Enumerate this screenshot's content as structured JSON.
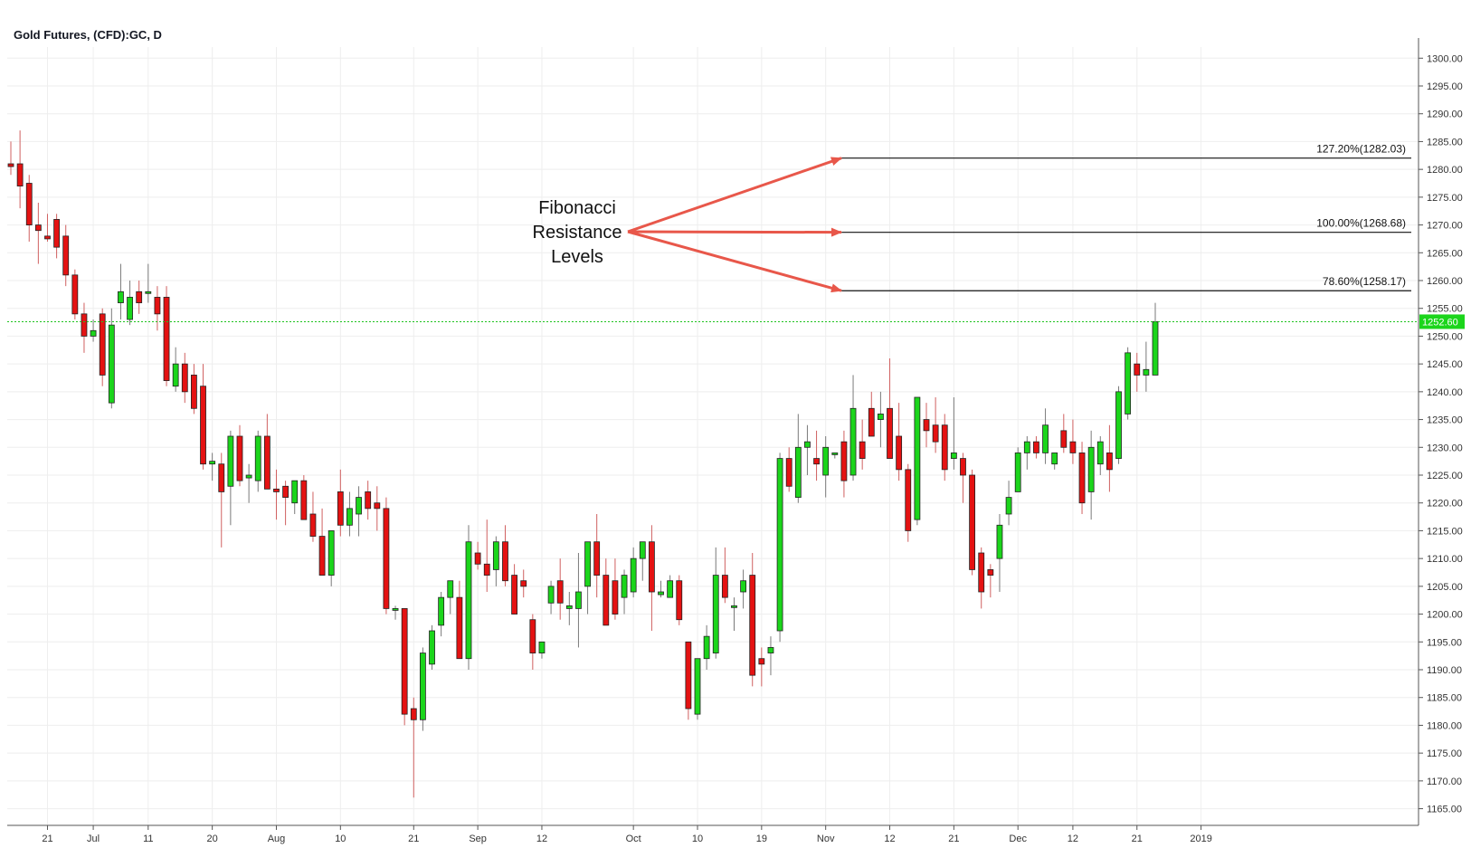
{
  "chart_data": {
    "type": "candlestick",
    "title": "Gold Futures, (CFD):GC, D",
    "ylim": [
      1162,
      1302
    ],
    "yticks": [
      1165,
      1170,
      1175,
      1180,
      1185,
      1190,
      1195,
      1200,
      1205,
      1210,
      1215,
      1220,
      1225,
      1230,
      1235,
      1240,
      1245,
      1250,
      1255,
      1260,
      1265,
      1270,
      1275,
      1280,
      1285,
      1290,
      1295,
      1300
    ],
    "xticks": [
      "21",
      "Jul",
      "11",
      "20",
      "Aug",
      "10",
      "21",
      "Sep",
      "12",
      "Oct",
      "10",
      "19",
      "Nov",
      "12",
      "21",
      "Dec",
      "12",
      "21",
      "2019"
    ],
    "xtick_bars": [
      4,
      9,
      15,
      22,
      29,
      36,
      44,
      51,
      58,
      68,
      75,
      82,
      89,
      96,
      103,
      110,
      116,
      123,
      130
    ],
    "colors": {
      "up": "#1bd51b",
      "down": "#e41212",
      "last_price_line": "#1ec31e",
      "grid": "#eeeeee",
      "arrow": "#e8574a"
    },
    "last_price": 1252.6,
    "last_price_label": "1252.60",
    "candles": [
      {
        "o": 1281,
        "h": 1285,
        "l": 1279,
        "c": 1280.5
      },
      {
        "o": 1281,
        "h": 1287,
        "l": 1273,
        "c": 1277
      },
      {
        "o": 1277.5,
        "h": 1279,
        "l": 1267,
        "c": 1270
      },
      {
        "o": 1270,
        "h": 1274,
        "l": 1263,
        "c": 1269
      },
      {
        "o": 1268,
        "h": 1272,
        "l": 1267,
        "c": 1267.5
      },
      {
        "o": 1271,
        "h": 1272,
        "l": 1264,
        "c": 1266
      },
      {
        "o": 1268,
        "h": 1270,
        "l": 1259,
        "c": 1261
      },
      {
        "o": 1261,
        "h": 1262,
        "l": 1253,
        "c": 1254
      },
      {
        "o": 1254,
        "h": 1256,
        "l": 1247,
        "c": 1250
      },
      {
        "o": 1250,
        "h": 1253,
        "l": 1249,
        "c": 1251
      },
      {
        "o": 1254,
        "h": 1255,
        "l": 1241,
        "c": 1243
      },
      {
        "o": 1238,
        "h": 1255,
        "l": 1237,
        "c": 1252
      },
      {
        "o": 1256,
        "h": 1263,
        "l": 1253,
        "c": 1258
      },
      {
        "o": 1253,
        "h": 1260,
        "l": 1252,
        "c": 1257
      },
      {
        "o": 1258,
        "h": 1260,
        "l": 1254,
        "c": 1256
      },
      {
        "o": 1258,
        "h": 1263,
        "l": 1256,
        "c": 1258
      },
      {
        "o": 1257,
        "h": 1259,
        "l": 1251,
        "c": 1254
      },
      {
        "o": 1257,
        "h": 1259,
        "l": 1241,
        "c": 1242
      },
      {
        "o": 1241,
        "h": 1248,
        "l": 1240,
        "c": 1245
      },
      {
        "o": 1245,
        "h": 1247,
        "l": 1238,
        "c": 1240
      },
      {
        "o": 1243,
        "h": 1245,
        "l": 1236,
        "c": 1237
      },
      {
        "o": 1241,
        "h": 1245,
        "l": 1226,
        "c": 1227
      },
      {
        "o": 1227,
        "h": 1229,
        "l": 1224,
        "c": 1227.5
      },
      {
        "o": 1227,
        "h": 1229,
        "l": 1212,
        "c": 1222
      },
      {
        "o": 1223,
        "h": 1233,
        "l": 1216,
        "c": 1232
      },
      {
        "o": 1232,
        "h": 1234,
        "l": 1223,
        "c": 1224
      },
      {
        "o": 1224.5,
        "h": 1227,
        "l": 1220,
        "c": 1225
      },
      {
        "o": 1224,
        "h": 1233,
        "l": 1222,
        "c": 1232
      },
      {
        "o": 1232,
        "h": 1236,
        "l": 1223,
        "c": 1222.5
      },
      {
        "o": 1222.5,
        "h": 1226,
        "l": 1217,
        "c": 1222
      },
      {
        "o": 1223,
        "h": 1224,
        "l": 1216,
        "c": 1221
      },
      {
        "o": 1220,
        "h": 1224,
        "l": 1218,
        "c": 1224
      },
      {
        "o": 1224,
        "h": 1225,
        "l": 1217,
        "c": 1217
      },
      {
        "o": 1218,
        "h": 1222,
        "l": 1213,
        "c": 1214
      },
      {
        "o": 1214,
        "h": 1219,
        "l": 1207,
        "c": 1207
      },
      {
        "o": 1207,
        "h": 1215,
        "l": 1205,
        "c": 1215
      },
      {
        "o": 1222,
        "h": 1226,
        "l": 1214,
        "c": 1216
      },
      {
        "o": 1216,
        "h": 1222,
        "l": 1214,
        "c": 1219
      },
      {
        "o": 1218,
        "h": 1223,
        "l": 1214,
        "c": 1221
      },
      {
        "o": 1222,
        "h": 1224,
        "l": 1217,
        "c": 1219
      },
      {
        "o": 1220,
        "h": 1223,
        "l": 1215,
        "c": 1219
      },
      {
        "o": 1219,
        "h": 1221,
        "l": 1200,
        "c": 1201
      },
      {
        "o": 1201,
        "h": 1201.5,
        "l": 1199,
        "c": 1201
      },
      {
        "o": 1201,
        "h": 1201,
        "l": 1180,
        "c": 1182
      },
      {
        "o": 1183,
        "h": 1185,
        "l": 1167,
        "c": 1181
      },
      {
        "o": 1181,
        "h": 1194,
        "l": 1179,
        "c": 1193
      },
      {
        "o": 1191,
        "h": 1198,
        "l": 1190,
        "c": 1197
      },
      {
        "o": 1198,
        "h": 1204,
        "l": 1196,
        "c": 1203
      },
      {
        "o": 1203,
        "h": 1206,
        "l": 1200,
        "c": 1206
      },
      {
        "o": 1203,
        "h": 1206,
        "l": 1192,
        "c": 1192
      },
      {
        "o": 1192,
        "h": 1216,
        "l": 1190,
        "c": 1213
      },
      {
        "o": 1211,
        "h": 1213,
        "l": 1208,
        "c": 1209
      },
      {
        "o": 1209,
        "h": 1217,
        "l": 1204,
        "c": 1207
      },
      {
        "o": 1208,
        "h": 1214,
        "l": 1205,
        "c": 1213
      },
      {
        "o": 1213,
        "h": 1216,
        "l": 1205,
        "c": 1206
      },
      {
        "o": 1207,
        "h": 1209,
        "l": 1200,
        "c": 1200
      },
      {
        "o": 1206,
        "h": 1208,
        "l": 1203,
        "c": 1205
      },
      {
        "o": 1199,
        "h": 1200,
        "l": 1190,
        "c": 1193
      },
      {
        "o": 1193,
        "h": 1195,
        "l": 1192,
        "c": 1195
      },
      {
        "o": 1202,
        "h": 1206,
        "l": 1200,
        "c": 1205
      },
      {
        "o": 1206,
        "h": 1210,
        "l": 1199,
        "c": 1202
      },
      {
        "o": 1201,
        "h": 1204,
        "l": 1198,
        "c": 1201.5
      },
      {
        "o": 1201,
        "h": 1211,
        "l": 1194,
        "c": 1204
      },
      {
        "o": 1205,
        "h": 1213,
        "l": 1200,
        "c": 1213
      },
      {
        "o": 1213,
        "h": 1218,
        "l": 1203,
        "c": 1207
      },
      {
        "o": 1207,
        "h": 1210,
        "l": 1198,
        "c": 1198
      },
      {
        "o": 1206,
        "h": 1210,
        "l": 1199,
        "c": 1200
      },
      {
        "o": 1203,
        "h": 1208,
        "l": 1200,
        "c": 1207
      },
      {
        "o": 1204,
        "h": 1212,
        "l": 1203,
        "c": 1210
      },
      {
        "o": 1210,
        "h": 1213,
        "l": 1206,
        "c": 1213
      },
      {
        "o": 1213,
        "h": 1216,
        "l": 1197,
        "c": 1204
      },
      {
        "o": 1203.5,
        "h": 1206,
        "l": 1203,
        "c": 1204
      },
      {
        "o": 1203,
        "h": 1207,
        "l": 1203,
        "c": 1206
      },
      {
        "o": 1206,
        "h": 1207,
        "l": 1198,
        "c": 1199
      },
      {
        "o": 1195,
        "h": 1195,
        "l": 1181,
        "c": 1183
      },
      {
        "o": 1182,
        "h": 1192,
        "l": 1181,
        "c": 1192
      },
      {
        "o": 1192,
        "h": 1198,
        "l": 1190,
        "c": 1196
      },
      {
        "o": 1193,
        "h": 1212,
        "l": 1192,
        "c": 1207
      },
      {
        "o": 1207,
        "h": 1212,
        "l": 1202,
        "c": 1203
      },
      {
        "o": 1201.5,
        "h": 1203,
        "l": 1197,
        "c": 1201.5
      },
      {
        "o": 1204,
        "h": 1208,
        "l": 1201,
        "c": 1206
      },
      {
        "o": 1207,
        "h": 1211,
        "l": 1187,
        "c": 1189
      },
      {
        "o": 1192,
        "h": 1194,
        "l": 1187,
        "c": 1191
      },
      {
        "o": 1193,
        "h": 1196,
        "l": 1189,
        "c": 1194
      },
      {
        "o": 1197,
        "h": 1229,
        "l": 1195,
        "c": 1228
      },
      {
        "o": 1228,
        "h": 1230,
        "l": 1222,
        "c": 1223
      },
      {
        "o": 1221,
        "h": 1236,
        "l": 1220,
        "c": 1230
      },
      {
        "o": 1230,
        "h": 1234,
        "l": 1225,
        "c": 1231
      },
      {
        "o": 1228,
        "h": 1233,
        "l": 1224,
        "c": 1227
      },
      {
        "o": 1225,
        "h": 1232,
        "l": 1221,
        "c": 1230
      },
      {
        "o": 1229,
        "h": 1229,
        "l": 1228,
        "c": 1229
      },
      {
        "o": 1231,
        "h": 1233,
        "l": 1221,
        "c": 1224
      },
      {
        "o": 1225,
        "h": 1243,
        "l": 1224,
        "c": 1237
      },
      {
        "o": 1231,
        "h": 1235,
        "l": 1226,
        "c": 1228
      },
      {
        "o": 1237,
        "h": 1240,
        "l": 1232,
        "c": 1232
      },
      {
        "o": 1235,
        "h": 1240,
        "l": 1230,
        "c": 1236
      },
      {
        "o": 1237,
        "h": 1246,
        "l": 1228,
        "c": 1228
      },
      {
        "o": 1232,
        "h": 1238,
        "l": 1224,
        "c": 1226
      },
      {
        "o": 1226,
        "h": 1227,
        "l": 1213,
        "c": 1215
      },
      {
        "o": 1217,
        "h": 1239,
        "l": 1216,
        "c": 1239
      },
      {
        "o": 1235,
        "h": 1238,
        "l": 1230,
        "c": 1233
      },
      {
        "o": 1234,
        "h": 1239,
        "l": 1229,
        "c": 1231
      },
      {
        "o": 1234,
        "h": 1236,
        "l": 1224,
        "c": 1226
      },
      {
        "o": 1228,
        "h": 1239,
        "l": 1226,
        "c": 1229
      },
      {
        "o": 1228,
        "h": 1229,
        "l": 1220,
        "c": 1225
      },
      {
        "o": 1225,
        "h": 1226,
        "l": 1207,
        "c": 1208
      },
      {
        "o": 1211,
        "h": 1212,
        "l": 1201,
        "c": 1204
      },
      {
        "o": 1208,
        "h": 1209,
        "l": 1203,
        "c": 1207
      },
      {
        "o": 1210,
        "h": 1218,
        "l": 1204,
        "c": 1216
      },
      {
        "o": 1218,
        "h": 1224,
        "l": 1216,
        "c": 1221
      },
      {
        "o": 1222,
        "h": 1230,
        "l": 1222,
        "c": 1229
      },
      {
        "o": 1229,
        "h": 1232,
        "l": 1226,
        "c": 1231
      },
      {
        "o": 1231,
        "h": 1232,
        "l": 1228,
        "c": 1229
      },
      {
        "o": 1229,
        "h": 1237,
        "l": 1227,
        "c": 1234
      },
      {
        "o": 1227,
        "h": 1229,
        "l": 1226,
        "c": 1229
      },
      {
        "o": 1233,
        "h": 1236,
        "l": 1229,
        "c": 1230
      },
      {
        "o": 1231,
        "h": 1235,
        "l": 1227,
        "c": 1229
      },
      {
        "o": 1229,
        "h": 1231,
        "l": 1218,
        "c": 1220
      },
      {
        "o": 1222,
        "h": 1233,
        "l": 1217,
        "c": 1230
      },
      {
        "o": 1227,
        "h": 1232,
        "l": 1225,
        "c": 1231
      },
      {
        "o": 1229,
        "h": 1234,
        "l": 1222,
        "c": 1226
      },
      {
        "o": 1228,
        "h": 1241,
        "l": 1227,
        "c": 1240
      },
      {
        "o": 1236,
        "h": 1248,
        "l": 1235,
        "c": 1247
      },
      {
        "o": 1245,
        "h": 1247,
        "l": 1240,
        "c": 1243
      },
      {
        "o": 1243,
        "h": 1249,
        "l": 1240,
        "c": 1244
      },
      {
        "o": 1243,
        "h": 1256,
        "l": 1243,
        "c": 1252.6
      }
    ],
    "fib_levels": [
      {
        "label": "127.20%(1282.03)",
        "value": 1282.03
      },
      {
        "label": "100.00%(1268.68)",
        "value": 1268.68
      },
      {
        "label": "78.60%(1258.17)",
        "value": 1258.17
      }
    ],
    "annotation": {
      "lines": [
        "Fibonacci",
        "Resistance",
        "Levels"
      ]
    }
  }
}
